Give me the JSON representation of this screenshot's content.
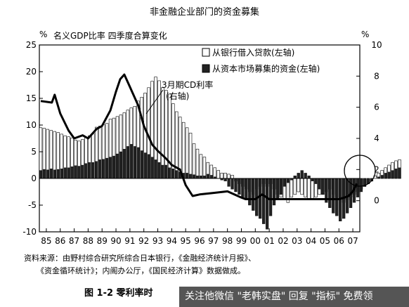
{
  "chart_data": {
    "type": "bar",
    "title": "非金融企业部门的资金募集",
    "yleft_unit": "%",
    "yleft_label": "名义GDP比率 四季度合算变化",
    "yright_unit": "%",
    "ylim_left": [
      -10,
      25
    ],
    "ylim_right": [
      -2,
      10
    ],
    "yticks_left": [
      "25",
      "20",
      "15",
      "10",
      "5",
      "0",
      "-5",
      "-10"
    ],
    "yticks_right": [
      "10",
      "8",
      "6",
      "4",
      "2",
      "0"
    ],
    "xticks": [
      "85",
      "86",
      "87",
      "88",
      "89",
      "90",
      "91",
      "92",
      "93",
      "94",
      "95",
      "96",
      "97",
      "98",
      "99",
      "00",
      "01",
      "02",
      "03",
      "04",
      "05",
      "06",
      "07"
    ],
    "series": [
      {
        "name": "从银行借入贷款(左轴)",
        "kind": "bar-open",
        "values": [
          9.5,
          9.4,
          9.2,
          9.0,
          8.8,
          8.6,
          8.3,
          8.0,
          7.8,
          7.6,
          7.2,
          7.0,
          7.3,
          7.6,
          8.0,
          8.4,
          9.6,
          9.8,
          10.1,
          10.3,
          11.1,
          11.3,
          11.6,
          11.9,
          12.3,
          12.8,
          13.2,
          13.5,
          14.5,
          15.2,
          16.0,
          17.0,
          18.2,
          19.0,
          18.3,
          17.0,
          16.5,
          15.8,
          14.0,
          12.5,
          11.5,
          10.5,
          9.5,
          8.5,
          6.5,
          5.5,
          4.5,
          4.0,
          3.0,
          2.5,
          2.0,
          1.5,
          1.0,
          1.0,
          0.8,
          0.6,
          -0.5,
          -1.0,
          -1.5,
          -2.0,
          -2.5,
          -3.0,
          -2.0,
          -1.5,
          -1.0,
          -1.5,
          -1.0,
          -2.0,
          -3.0,
          -3.5,
          -4.0,
          -4.5,
          -3.5,
          -3.0,
          -2.5,
          -3.0,
          -3.5,
          -4.0,
          -4.0,
          -3.5,
          -3.0,
          -3.0,
          -2.5,
          -2.0,
          -3.0,
          -3.5,
          -4.0,
          -4.5,
          -4.0,
          -3.5,
          -3.0,
          -2.5,
          -2.0,
          -1.5,
          -1.0,
          -0.5,
          0.5,
          1.0,
          1.5,
          2.0,
          2.5,
          3.0,
          3.3,
          3.5
        ]
      },
      {
        "name": "从资本市场募集的资金(左轴)",
        "kind": "bar-filled",
        "values": [
          1.5,
          1.7,
          1.6,
          1.8,
          1.6,
          1.7,
          1.8,
          2.0,
          2.0,
          2.2,
          2.4,
          2.3,
          2.5,
          2.8,
          3.0,
          3.0,
          3.2,
          3.5,
          3.6,
          3.8,
          4.0,
          4.2,
          4.6,
          5.0,
          5.5,
          6.0,
          6.4,
          6.0,
          5.8,
          5.2,
          4.8,
          4.5,
          4.0,
          3.5,
          3.0,
          2.5,
          2.5,
          2.0,
          1.8,
          1.5,
          1.2,
          1.0,
          1.0,
          0.8,
          0.7,
          0.5,
          0.5,
          0.5,
          0.8,
          0.6,
          0.3,
          0.0,
          -0.3,
          -0.5,
          -1.5,
          -2.0,
          -2.5,
          -3.0,
          -3.5,
          -4.0,
          -5.0,
          -6.0,
          -7.0,
          -7.5,
          -8.5,
          -9.5,
          -7.0,
          -5.0,
          -4.0,
          -3.0,
          -1.5,
          -0.8,
          -0.3,
          0.5,
          1.0,
          1.5,
          1.0,
          0.5,
          -0.5,
          -1.0,
          -2.0,
          -3.0,
          -4.5,
          -5.5,
          -6.5,
          -7.0,
          -8.0,
          -7.5,
          -6.5,
          -5.5,
          -4.5,
          -3.5,
          -2.5,
          -1.5,
          -1.0,
          -0.5,
          0.0,
          0.3,
          0.6,
          1.0,
          1.2,
          1.5,
          1.8,
          2.0
        ]
      },
      {
        "name": "3月期CD利率(右轴)",
        "kind": "line",
        "x_years": [
          1984.6,
          1985.4,
          1985.6,
          1986.0,
          1986.6,
          1987.0,
          1987.6,
          1988.0,
          1988.6,
          1989.0,
          1989.6,
          1990.0,
          1990.3,
          1990.6,
          1991.0,
          1991.6,
          1992.0,
          1992.6,
          1993.0,
          1993.6,
          1994.0,
          1994.6,
          1995.0,
          1995.5,
          1996.0,
          1997.0,
          1998.0,
          1999.0,
          1999.3,
          2000.0,
          2000.5,
          2001.0,
          2001.5,
          2002.0,
          2003.0,
          2004.0,
          2005.0,
          2006.0,
          2006.4,
          2006.7,
          2007.0,
          2007.3
        ],
        "values": [
          6.4,
          6.3,
          6.8,
          5.6,
          4.5,
          4.0,
          4.2,
          4.0,
          4.6,
          4.8,
          5.8,
          7.0,
          7.8,
          8.1,
          7.3,
          6.1,
          4.8,
          3.6,
          3.2,
          2.7,
          2.3,
          2.0,
          1.0,
          0.3,
          0.4,
          0.5,
          0.6,
          0.2,
          0.1,
          0.1,
          0.4,
          0.1,
          0.1,
          0.1,
          0.1,
          0.1,
          0.1,
          0.1,
          0.2,
          0.3,
          0.6,
          1.1
        ],
        "annotation": "3月期CD利率",
        "annotation2": "(右轴)"
      }
    ],
    "legend_position": "top-right",
    "start_year": 1984.5,
    "bar_step_year": 0.25
  },
  "notes": {
    "line1": "资料来源：由野村综合研究所综合日本银行，《金融经济统计月报》、",
    "line2": "《资金循环统计》；内阁办公厅，《国民经济计算》数据做成。"
  },
  "caption": "图 1-2  零利率时",
  "watermark": "关注他微信 \"老韩实盘\" 回复 \"指标\" 免费领"
}
